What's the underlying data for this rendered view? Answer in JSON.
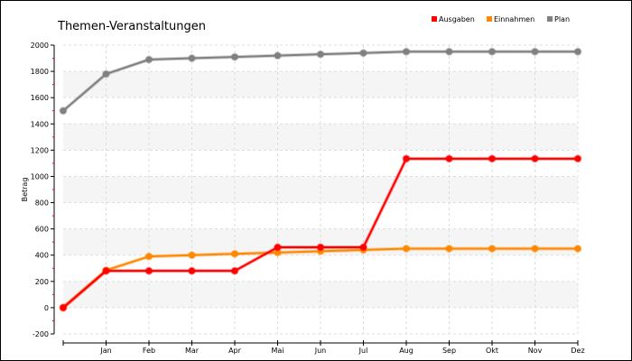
{
  "chart_data": {
    "type": "line",
    "title": "Themen-Veranstaltungen",
    "xlabel": "",
    "ylabel": "Betrag",
    "categories": [
      "",
      "Jan",
      "Feb",
      "Mar",
      "Apr",
      "Mai",
      "Jun",
      "Jul",
      "Aug",
      "Sep",
      "Okt",
      "Nov",
      "Dez"
    ],
    "ylim": [
      -200,
      2000
    ],
    "yticks": [
      -200,
      0,
      200,
      400,
      600,
      800,
      1000,
      1200,
      1400,
      1600,
      1800,
      2000
    ],
    "grid": true,
    "legend_position": "top-right",
    "series": [
      {
        "name": "Ausgaben",
        "color": "#ff0000",
        "values": [
          0,
          280,
          280,
          280,
          280,
          460,
          460,
          460,
          1135,
          1135,
          1135,
          1135,
          1135
        ]
      },
      {
        "name": "Einnahmen",
        "color": "#ff8800",
        "values": [
          0,
          285,
          390,
          400,
          410,
          420,
          430,
          440,
          450,
          450,
          450,
          450,
          450
        ]
      },
      {
        "name": "Plan",
        "color": "#808080",
        "values": [
          1500,
          1780,
          1890,
          1900,
          1910,
          1920,
          1930,
          1940,
          1950,
          1950,
          1950,
          1950,
          1950
        ]
      }
    ]
  }
}
